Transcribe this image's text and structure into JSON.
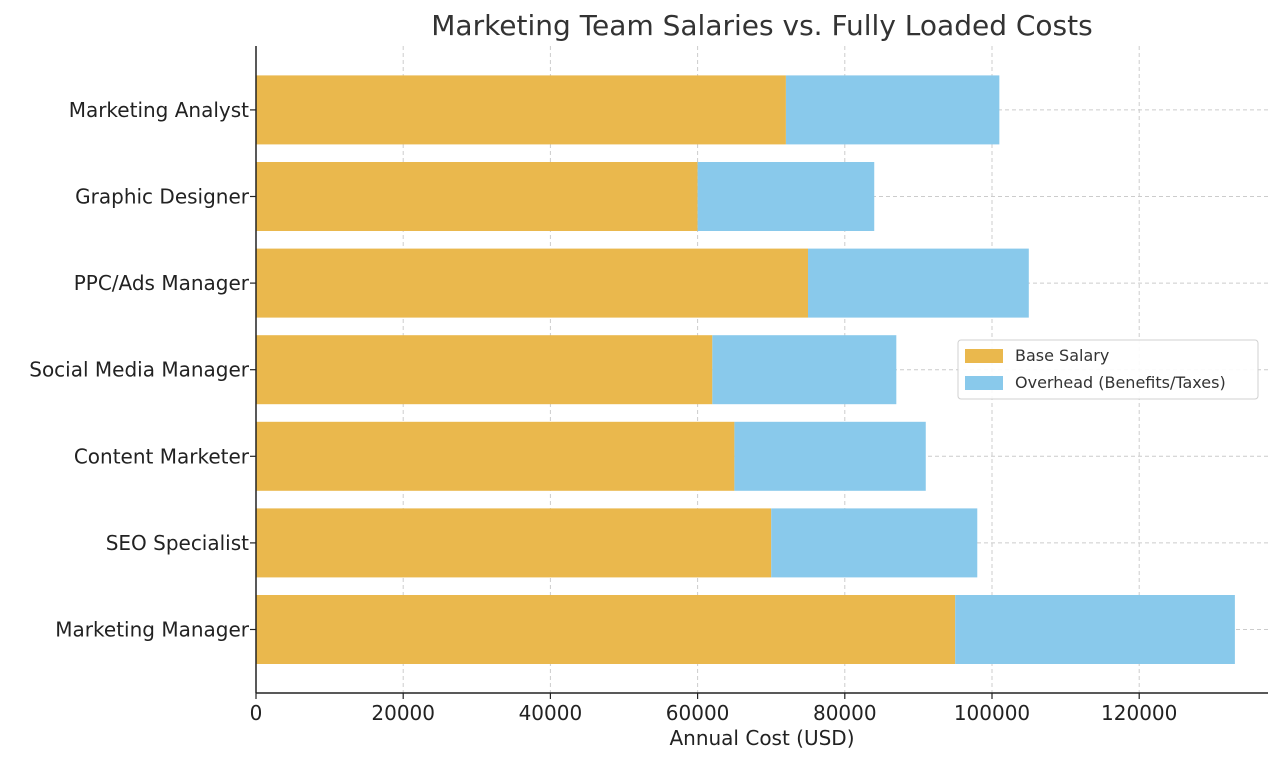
{
  "chart_data": {
    "type": "bar",
    "orientation": "horizontal",
    "stacked": true,
    "title": "Marketing Team Salaries vs. Fully Loaded Costs",
    "xlabel": "Annual Cost (USD)",
    "ylabel": "",
    "xlim": [
      0,
      137500
    ],
    "xticks": [
      0,
      20000,
      40000,
      60000,
      80000,
      100000,
      120000
    ],
    "xtick_labels": [
      "0",
      "20000",
      "40000",
      "60000",
      "80000",
      "100000",
      "120000"
    ],
    "grid": true,
    "legend_position": "center-right",
    "categories": [
      "Marketing Manager",
      "SEO Specialist",
      "Content Marketer",
      "Social Media Manager",
      "PPC/Ads Manager",
      "Graphic Designer",
      "Marketing Analyst"
    ],
    "series": [
      {
        "name": "Base Salary",
        "color": "#EAB84D",
        "values": [
          95000,
          70000,
          65000,
          62000,
          75000,
          60000,
          72000
        ]
      },
      {
        "name": "Overhead (Benefits/Taxes)",
        "color": "#89C9EB",
        "values": [
          38000,
          28000,
          26000,
          25000,
          30000,
          24000,
          29000
        ]
      }
    ]
  }
}
